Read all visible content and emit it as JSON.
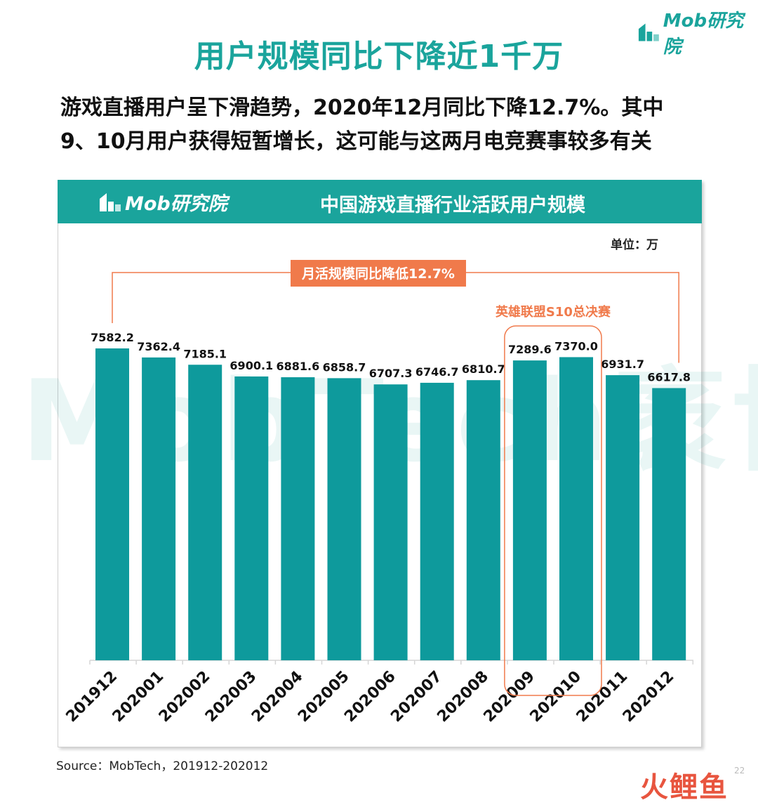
{
  "page": {
    "title": "用户规模同比下降近1千万",
    "brand": "Mob研究院",
    "subtitle_line1": "游戏直播用户呈下滑趋势，2020年12月同比下降12.7%。其中",
    "subtitle_line2": "9、10月用户获得短暂增长，这可能与这两月电竞赛事较多有关",
    "source": "Source：MobTech，201912-202012",
    "page_number": "22",
    "watermark": "MobTech袤博",
    "corner_brand": "火鲤鱼"
  },
  "colors": {
    "teal": "#1aa49c",
    "bar": "#0e9a9c",
    "orange": "#f07a4b",
    "text": "#111111"
  },
  "chart_data": {
    "type": "bar",
    "title": "中国游戏直播行业活跃用户规模",
    "unit_label": "单位：万",
    "categories": [
      "201912",
      "202001",
      "202002",
      "202003",
      "202004",
      "202005",
      "202006",
      "202007",
      "202008",
      "202009",
      "202010",
      "202011",
      "202012"
    ],
    "values": [
      7582.2,
      7362.4,
      7185.1,
      6900.1,
      6881.6,
      6858.7,
      6707.3,
      6746.7,
      6810.7,
      7289.6,
      7370.0,
      6931.7,
      6617.8
    ],
    "value_labels": [
      "7582.2",
      "7362.4",
      "7185.1",
      "6900.1",
      "6881.6",
      "6858.7",
      "6707.3",
      "6746.7",
      "6810.7",
      "7289.6",
      "7370.0",
      "6931.7",
      "6617.8"
    ],
    "ylim": [
      0,
      7582.2
    ],
    "grid": false,
    "legend": "none",
    "annotations": {
      "yoy_label": "月活规模同比降低12.7%",
      "highlight_label": "英雄联盟S10总决赛",
      "highlight_categories": [
        "202009",
        "202010"
      ]
    }
  }
}
